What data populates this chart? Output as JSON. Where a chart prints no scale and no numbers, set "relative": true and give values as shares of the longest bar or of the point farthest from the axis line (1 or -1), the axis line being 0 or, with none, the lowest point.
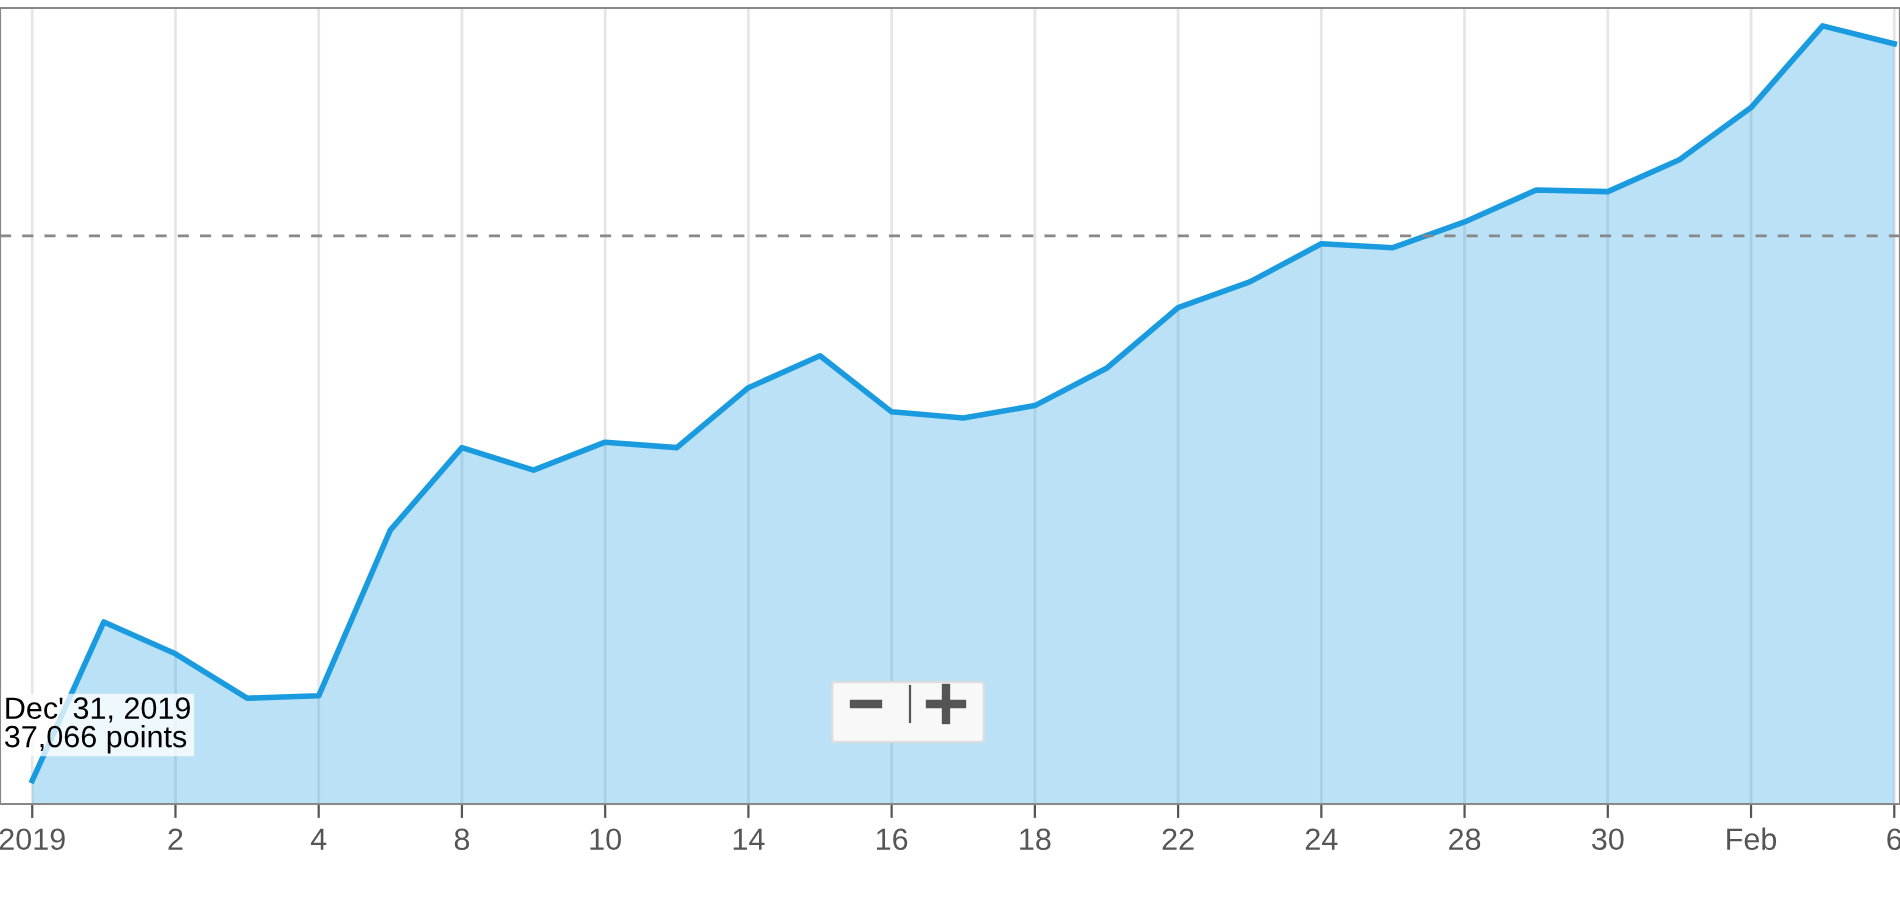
{
  "chart_data": {
    "type": "area",
    "relative": true,
    "categories": [
      "2019",
      null,
      "2",
      null,
      "4",
      null,
      "8",
      null,
      "10",
      null,
      "14",
      null,
      "16",
      null,
      "18",
      null,
      "22",
      null,
      "24",
      null,
      "28",
      null,
      "30",
      null,
      "Feb",
      null,
      "6"
    ],
    "series": [
      {
        "color": "#1a9be0",
        "values": [
          0.03,
          0.234,
          0.193,
          0.136,
          0.139,
          0.352,
          0.458,
          0.429,
          0.465,
          0.458,
          0.535,
          0.576,
          0.504,
          0.496,
          0.512,
          0.56,
          0.638,
          0.671,
          0.72,
          0.715,
          0.748,
          0.789,
          0.787,
          0.828,
          0.895,
          1.0,
          0.977
        ]
      }
    ],
    "ref_lines": [
      {
        "axis": "y",
        "value": 0.73,
        "color": "#888888",
        "line_style": "dashed"
      }
    ],
    "annotations": [
      "Dec' 31, 2019\n37,066 points"
    ],
    "grid": "x",
    "legend": false,
    "marker": "none",
    "line_style": "solid"
  }
}
